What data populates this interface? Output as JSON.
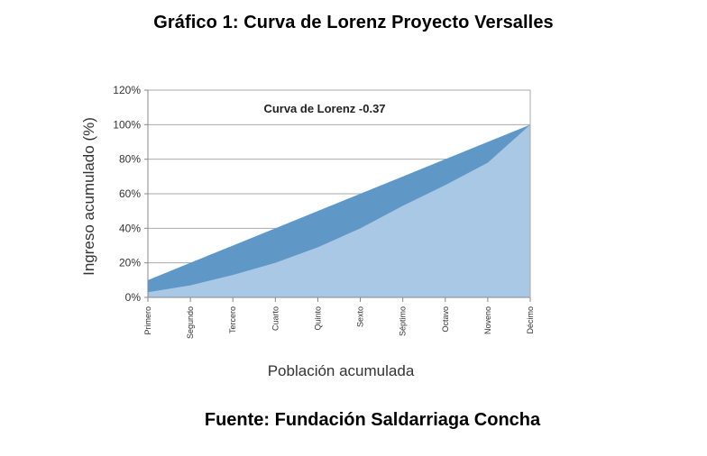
{
  "title": "Gráfico 1: Curva de Lorenz Proyecto Versalles",
  "source": "Fuente: Fundación Saldarriaga Concha",
  "colors": {
    "equality_band": "#5f97c6",
    "lorenz_area": "#a8c8e6",
    "axis": "#888888",
    "grid": "#aaaaaa"
  },
  "chart_data": {
    "type": "area",
    "title": "",
    "xlabel": "Población acumulada",
    "ylabel": "Ingreso acumulado (%)",
    "annotation": "Curva de Lorenz -0.37",
    "categories": [
      "Primero",
      "Segundo",
      "Tercero",
      "Cuarto",
      "Quinto",
      "Sexto",
      "Séptimo",
      "Octavo",
      "Noveno",
      "Décimo"
    ],
    "ylim": [
      0,
      120
    ],
    "yticks": [
      0,
      20,
      40,
      60,
      80,
      100,
      120
    ],
    "ytick_labels": [
      "0%",
      "20%",
      "40%",
      "60%",
      "80%",
      "100%",
      "120%"
    ],
    "series": [
      {
        "values": [
          10,
          20,
          30,
          40,
          50,
          60,
          70,
          80,
          90,
          100
        ]
      },
      {
        "values": [
          3,
          7,
          13,
          20,
          29,
          40,
          53,
          65,
          78,
          100
        ]
      }
    ],
    "grid": true,
    "legend": "none"
  }
}
